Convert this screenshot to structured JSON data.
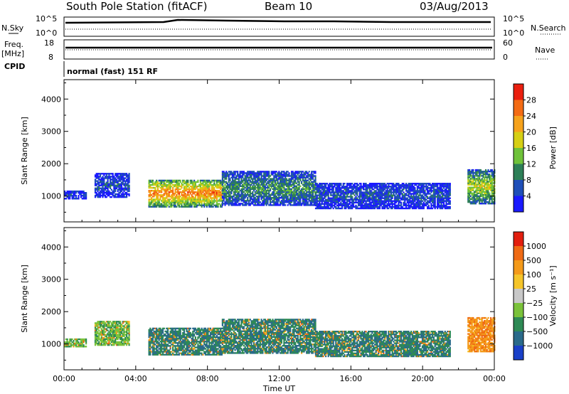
{
  "header": {
    "station_title": "South Pole Station (fitACF)",
    "beam": "Beam 10",
    "date": "03/Aug/2013"
  },
  "params": {
    "nsky_label": "N.Sky",
    "nsky_ticks": [
      "10^5",
      "10^0"
    ],
    "nsearch_label": "N.Search",
    "nsearch_ticks": [
      "10^5",
      "10^0"
    ],
    "freq_label": "Freq.",
    "freq_unit": "[MHz]",
    "freq_ticks": [
      "18",
      "8"
    ],
    "nave_label": "Nave",
    "nave_ticks": [
      "60",
      "0"
    ],
    "cpid_label": "CPID",
    "cpid_value": "normal (fast) 151 RF"
  },
  "chart_data": [
    {
      "type": "heatmap",
      "name": "power",
      "ylabel": "Slant Range [km]",
      "xlabel": "",
      "ylim": [
        200,
        4600
      ],
      "yticks": [
        "1000",
        "2000",
        "3000",
        "4000"
      ],
      "colorbar": {
        "label": "Power [dB]",
        "ticks": [
          "4",
          "8",
          "12",
          "16",
          "20",
          "24",
          "28"
        ],
        "colors": [
          "#1a1aff",
          "#1f4fb8",
          "#2d7f57",
          "#6fc23a",
          "#d6cf14",
          "#f6a21c",
          "#f46b14",
          "#ea1f0f"
        ],
        "range": [
          0,
          30
        ]
      },
      "echo_bands": [
        {
          "t_start": 0.0,
          "t_end": 1.2,
          "range_low": 900,
          "range_high": 1150,
          "level": 0.15
        },
        {
          "t_start": 1.7,
          "t_end": 3.6,
          "range_low": 950,
          "range_high": 1700,
          "level": 0.2
        },
        {
          "t_start": 4.7,
          "t_end": 8.8,
          "range_low": 650,
          "range_high": 1500,
          "level": 0.8
        },
        {
          "t_start": 8.8,
          "t_end": 14.0,
          "range_low": 700,
          "range_high": 1750,
          "level": 0.35
        },
        {
          "t_start": 14.0,
          "t_end": 21.5,
          "range_low": 600,
          "range_high": 1400,
          "level": 0.2
        },
        {
          "t_start": 22.5,
          "t_end": 24.0,
          "range_low": 750,
          "range_high": 1800,
          "level": 0.55
        }
      ]
    },
    {
      "type": "heatmap",
      "name": "velocity",
      "ylabel": "Slant Range [km]",
      "xlabel": "Time UT",
      "ylim": [
        200,
        4600
      ],
      "yticks": [
        "1000",
        "2000",
        "3000",
        "4000"
      ],
      "xticks": [
        "00:00",
        "04:00",
        "08:00",
        "12:00",
        "16:00",
        "20:00",
        "00:00"
      ],
      "xlim": [
        0,
        24
      ],
      "colorbar": {
        "label": "Velocity [m s⁻¹]",
        "ticks": [
          "1000",
          "500",
          "100",
          "25",
          "−25",
          "−100",
          "−500",
          "−1000"
        ],
        "colors": [
          "#1a40c8",
          "#2a6a8a",
          "#2e8a55",
          "#7ac23a",
          "#c8c8c8",
          "#f5c52a",
          "#f49a1a",
          "#ef6a14",
          "#e21f0f"
        ],
        "range": [
          -1000,
          1000
        ]
      },
      "echo_bands": [
        {
          "t_start": 0.0,
          "t_end": 1.2,
          "range_low": 900,
          "range_high": 1150,
          "level": -0.3
        },
        {
          "t_start": 1.7,
          "t_end": 3.6,
          "range_low": 950,
          "range_high": 1700,
          "level": -0.3
        },
        {
          "t_start": 4.7,
          "t_end": 8.8,
          "range_low": 650,
          "range_high": 1500,
          "level": -0.55
        },
        {
          "t_start": 8.8,
          "t_end": 14.0,
          "range_low": 700,
          "range_high": 1750,
          "level": -0.55
        },
        {
          "t_start": 14.0,
          "t_end": 21.5,
          "range_low": 600,
          "range_high": 1400,
          "level": -0.55
        },
        {
          "t_start": 22.5,
          "t_end": 24.0,
          "range_low": 750,
          "range_high": 1800,
          "level": 0.5
        }
      ]
    }
  ]
}
